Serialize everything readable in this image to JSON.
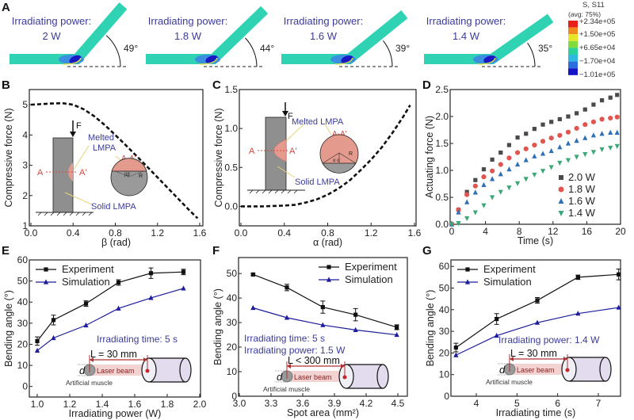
{
  "panel_labels": {
    "A": "A",
    "B": "B",
    "C": "C",
    "D": "D",
    "E": "E",
    "F": "F",
    "G": "G"
  },
  "simulation": {
    "caption_prefix": "Irradiating power:",
    "panels": [
      {
        "power": "2 W",
        "angle_label": "49°",
        "angle": 49
      },
      {
        "power": "1.8 W",
        "angle_label": "44°",
        "angle": 44
      },
      {
        "power": "1.6 W",
        "angle_label": "39°",
        "angle": 39
      },
      {
        "power": "1.4 W",
        "angle_label": "35°",
        "angle": 35
      }
    ],
    "colorbar": {
      "title": "S, S11",
      "subtitle": "(avg: 75%)",
      "labels": [
        "+2.34e+05",
        "+1.50e+05",
        "+6.65e+04",
        "−1.70e+04",
        "−1.01e+05"
      ],
      "colors": [
        "#e8201a",
        "#f08a1e",
        "#e6e628",
        "#7fdc3a",
        "#2ad19a",
        "#2fb8e0",
        "#2a6fe0",
        "#1414c8"
      ]
    }
  },
  "insets": {
    "B": {
      "force": "F",
      "melted": "Melted",
      "lmpa": "LMPA",
      "section": "A-A'",
      "a": "A",
      "a_prime": "A'",
      "angle": "ββ",
      "radius": "R",
      "solid": "Solid LMPA"
    },
    "C": {
      "force": "F",
      "melted": "Melted  LMPA",
      "section": "A-A'",
      "a": "A",
      "a_prime": "A'",
      "angle": "α α",
      "radius": "R",
      "solid": "Solid LMPA"
    },
    "E": {
      "note1": "Irradiating time: 5 s",
      "length": "L = 30 mm",
      "d": "d",
      "beam": "Laser beam",
      "muscle": "Artificial muscle"
    },
    "F": {
      "note1": "Irradiating time: 5 s",
      "note2": "Irradiating power: 1.5 W",
      "length": "L < 300 mm",
      "d": "d",
      "beam": "Laser beam",
      "muscle": "Artificial muscle"
    },
    "G": {
      "note1": "Irradiating power: 1.4 W",
      "length": "L = 30 mm",
      "d": "d",
      "beam": "Laser beam",
      "muscle": "Artificial muscle"
    }
  },
  "chart_data": [
    {
      "id": "B",
      "type": "line",
      "style": "dashed",
      "xlabel": "β (rad)",
      "ylabel": "Compressive force (N)",
      "xlim": [
        0,
        1.6
      ],
      "ylim": [
        1,
        5.5
      ],
      "xticks": [
        0,
        0.4,
        0.8,
        1.2,
        1.6
      ],
      "xticklabels": [
        "0.0",
        "0.4",
        "0.8",
        "1.2",
        "1.6"
      ],
      "yticks": [
        1,
        2,
        3,
        4,
        5
      ],
      "yticklabels": [
        "1",
        "2",
        "3",
        "4",
        "5"
      ],
      "series": [
        {
          "x": [
            0,
            0.1,
            0.2,
            0.3,
            0.4,
            0.5,
            0.6,
            0.7,
            0.8,
            0.9,
            1.0,
            1.1,
            1.2,
            1.3,
            1.4,
            1.5,
            1.58
          ],
          "y": [
            5.0,
            5.02,
            5.04,
            5.05,
            5.0,
            4.85,
            4.62,
            4.33,
            4.0,
            3.66,
            3.31,
            2.96,
            2.6,
            2.24,
            1.88,
            1.52,
            1.25
          ],
          "color": "#111111"
        }
      ]
    },
    {
      "id": "C",
      "type": "line",
      "style": "dashed",
      "xlabel": "α (rad)",
      "ylabel": "Compressive force (N)",
      "xlim": [
        0,
        1.6
      ],
      "ylim": [
        -0.25,
        1.5
      ],
      "xticks": [
        0,
        0.4,
        0.8,
        1.2,
        1.6
      ],
      "xticklabels": [
        "0.0",
        "0.4",
        "0.8",
        "1.2",
        "1.6"
      ],
      "yticks": [
        0,
        0.5,
        1.0,
        1.5
      ],
      "yticklabels": [
        "0.0",
        "0.5",
        "1.0",
        "1.5"
      ],
      "series": [
        {
          "x": [
            0,
            0.2,
            0.4,
            0.5,
            0.6,
            0.7,
            0.8,
            0.9,
            1.0,
            1.1,
            1.2,
            1.3,
            1.4,
            1.5,
            1.56
          ],
          "y": [
            0,
            0,
            0.01,
            0.02,
            0.05,
            0.09,
            0.15,
            0.23,
            0.33,
            0.46,
            0.6,
            0.76,
            0.95,
            1.16,
            1.3
          ],
          "color": "#111111"
        }
      ]
    },
    {
      "id": "D",
      "type": "scatter",
      "xlabel": "Time (s)",
      "ylabel": "Actuating force (N)",
      "xlim": [
        0,
        20
      ],
      "ylim": [
        0,
        2.5
      ],
      "xticks": [
        0,
        4,
        8,
        12,
        16,
        20
      ],
      "xticklabels": [
        "0",
        "4",
        "8",
        "12",
        "16",
        "20"
      ],
      "yticks": [
        0,
        0.5,
        1.0,
        1.5,
        2.0,
        2.5
      ],
      "yticklabels": [
        "0.0",
        "0.5",
        "1.0",
        "1.5",
        "2.0",
        "2.5"
      ],
      "legend": "bottom-right",
      "x": [
        0,
        0.8,
        1.8,
        2.8,
        3.8,
        4.8,
        5.8,
        6.8,
        7.8,
        8.8,
        9.8,
        10.8,
        11.8,
        12.8,
        13.8,
        14.8,
        15.8,
        16.8,
        17.8,
        18.8,
        19.6
      ],
      "series": [
        {
          "name": "2.0 W",
          "marker": "square",
          "color": "#4a4a4a",
          "values": [
            0,
            0.27,
            0.6,
            0.82,
            1.02,
            1.2,
            1.33,
            1.47,
            1.61,
            1.68,
            1.77,
            1.85,
            1.9,
            1.95,
            2.0,
            2.06,
            2.13,
            2.22,
            2.3,
            2.35,
            2.4
          ]
        },
        {
          "name": "1.8 W",
          "marker": "circle",
          "color": "#e0564f",
          "values": [
            0,
            0.27,
            0.55,
            0.71,
            0.88,
            0.99,
            1.11,
            1.23,
            1.33,
            1.4,
            1.47,
            1.54,
            1.6,
            1.65,
            1.71,
            1.78,
            1.85,
            1.9,
            1.95,
            1.97,
            1.99
          ]
        },
        {
          "name": "1.6 W",
          "marker": "triangle-up",
          "color": "#2f6fb5",
          "values": [
            0,
            0.22,
            0.41,
            0.59,
            0.73,
            0.84,
            0.93,
            1.02,
            1.11,
            1.19,
            1.26,
            1.31,
            1.36,
            1.43,
            1.5,
            1.55,
            1.6,
            1.65,
            1.68,
            1.7,
            1.7
          ]
        },
        {
          "name": "1.4 W",
          "marker": "triangle-down",
          "color": "#3aa878",
          "values": [
            0,
            0.02,
            0.11,
            0.22,
            0.35,
            0.5,
            0.6,
            0.68,
            0.76,
            0.84,
            0.92,
            0.99,
            1.06,
            1.14,
            1.19,
            1.25,
            1.3,
            1.34,
            1.39,
            1.42,
            1.45
          ]
        }
      ]
    },
    {
      "id": "E",
      "type": "line",
      "xlabel": "Irradiating power (W)",
      "ylabel": "Bending angle (°)",
      "xlim": [
        1.0,
        2.0
      ],
      "ylim": [
        -5,
        60
      ],
      "xticks": [
        1.0,
        1.2,
        1.4,
        1.6,
        1.8,
        2.0
      ],
      "xticklabels": [
        "1.0",
        "1.2",
        "1.4",
        "1.6",
        "1.8",
        "2.0"
      ],
      "yticks": [
        0,
        10,
        20,
        30,
        40,
        50,
        60
      ],
      "yticklabels": [
        "0",
        "10",
        "20",
        "30",
        "40",
        "50",
        "60"
      ],
      "legend": "top-left",
      "x": [
        1.0,
        1.1,
        1.3,
        1.5,
        1.7,
        1.9
      ],
      "series": [
        {
          "name": "Experiment",
          "marker": "square",
          "color": "#111111",
          "values": [
            21.5,
            31.5,
            39.3,
            49.3,
            53.7,
            54.3
          ],
          "errors": [
            2.0,
            2.3,
            1.3,
            1.3,
            2.5,
            1.3
          ]
        },
        {
          "name": "Simulation",
          "marker": "triangle-up",
          "color": "#1c1c9c",
          "values": [
            17,
            23,
            29,
            37,
            42,
            46.5
          ]
        }
      ]
    },
    {
      "id": "F",
      "type": "line",
      "xlabel": "Spot area (mm²)",
      "ylabel": "Bending angle (°)",
      "xlim": [
        3.0,
        4.5
      ],
      "ylim": [
        0,
        56.5
      ],
      "xticks": [
        3.0,
        3.3,
        3.6,
        3.9,
        4.2,
        4.5
      ],
      "xticklabels": [
        "3.0",
        "3.3",
        "3.6",
        "3.9",
        "4.2",
        "4.5"
      ],
      "yticks": [
        0,
        10,
        20,
        30,
        40,
        50
      ],
      "yticklabels": [
        "0",
        "10",
        "20",
        "30",
        "40",
        "50"
      ],
      "legend": "top-right",
      "x": [
        3.13,
        3.45,
        3.79,
        4.1,
        4.49
      ],
      "series": [
        {
          "name": "Experiment",
          "marker": "square",
          "color": "#111111",
          "values": [
            49.6,
            44.3,
            36.3,
            33.2,
            28.1
          ],
          "errors": [
            0.5,
            1.3,
            2.5,
            2.5,
            1.0
          ]
        },
        {
          "name": "Simulation",
          "marker": "triangle-up",
          "color": "#1c1c9c",
          "values": [
            36,
            32,
            29,
            27,
            25
          ]
        }
      ]
    },
    {
      "id": "G",
      "type": "line",
      "xlabel": "Irradiating time (s)",
      "ylabel": "Bending angle (°)",
      "xlim": [
        4,
        7
      ],
      "ylim": [
        0,
        63
      ],
      "xticks": [
        4,
        5,
        6,
        7
      ],
      "xticklabels": [
        "4",
        "5",
        "6",
        "7"
      ],
      "yticks": [
        0,
        10,
        20,
        30,
        40,
        50,
        60
      ],
      "yticklabels": [
        "0",
        "10",
        "20",
        "30",
        "40",
        "50",
        "60"
      ],
      "legend": "top-left",
      "x": [
        3.5,
        4.5,
        5.5,
        6.5,
        7.5
      ],
      "series": [
        {
          "name": "Experiment",
          "marker": "square",
          "color": "#111111",
          "values": [
            22.5,
            35.7,
            44.3,
            55,
            56.3
          ],
          "errors": [
            2.0,
            2.5,
            1.3,
            1.0,
            2.5
          ]
        },
        {
          "name": "Simulation",
          "marker": "triangle-up",
          "color": "#1c1c9c",
          "values": [
            19,
            28,
            34,
            38.2,
            41
          ]
        }
      ]
    }
  ]
}
